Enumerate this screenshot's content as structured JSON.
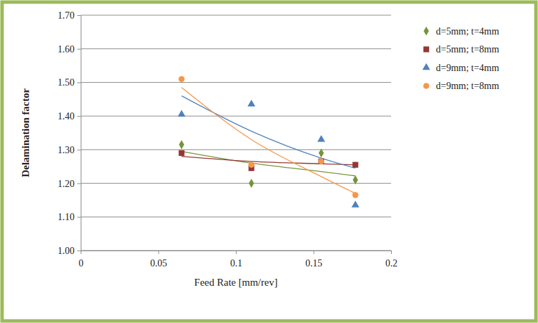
{
  "chart_data": {
    "type": "scatter",
    "x_label": "Feed Rate [mm/rev]",
    "y_label": "Delamination factor",
    "x": [
      0.065,
      0.11,
      0.155,
      0.177
    ],
    "xlim": [
      0,
      0.2
    ],
    "xticks": [
      0,
      0.05,
      0.1,
      0.15,
      0.2
    ],
    "ylim": [
      1.0,
      1.7
    ],
    "yticks": [
      {
        "value": 1.0,
        "label": "1.00"
      },
      {
        "value": 1.1,
        "label": "1.10"
      },
      {
        "value": 1.2,
        "label": "1.20"
      },
      {
        "value": 1.3,
        "label": "1.30"
      },
      {
        "value": 1.4,
        "label": "1.40"
      },
      {
        "value": 1.5,
        "label": "1.50"
      },
      {
        "value": 1.6,
        "label": "1.60"
      },
      {
        "value": 1.7,
        "label": "1.70"
      }
    ],
    "grid": true,
    "legend": "right",
    "series": [
      {
        "name": "d=5mm; t=4mm",
        "color": "#77933c",
        "marker": "diamond",
        "values": [
          1.315,
          1.2,
          1.29,
          1.21
        ],
        "trend_values": [
          1.295,
          1.26,
          1.235,
          1.222
        ]
      },
      {
        "name": "d=5mm; t=8mm",
        "color": "#953735",
        "marker": "square",
        "values": [
          1.29,
          1.245,
          1.265,
          1.255
        ],
        "trend_values": [
          1.28,
          1.265,
          1.258,
          1.255
        ]
      },
      {
        "name": "d=9mm; t=4mm",
        "color": "#4f81bd",
        "marker": "triangle",
        "values": [
          1.405,
          1.435,
          1.33,
          1.135
        ],
        "trend_values": [
          1.46,
          1.355,
          1.275,
          1.245
        ]
      },
      {
        "name": "d=9mm; t=8mm",
        "color": "#f79646",
        "marker": "circle",
        "values": [
          1.51,
          1.255,
          1.265,
          1.165
        ],
        "trend_values": [
          1.485,
          1.33,
          1.22,
          1.17
        ]
      }
    ]
  }
}
